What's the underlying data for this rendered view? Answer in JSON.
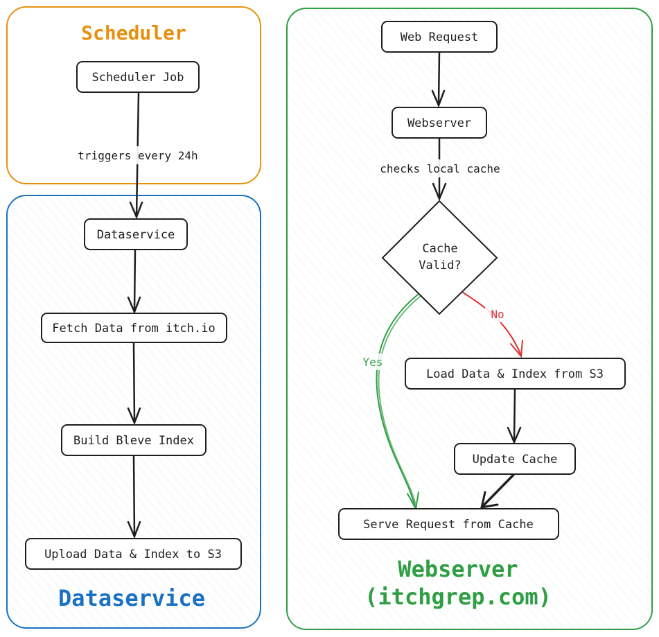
{
  "groups": {
    "scheduler": {
      "title": "Scheduler",
      "color": "#e8900c"
    },
    "dataservice": {
      "title": "Dataservice",
      "color": "#1971c2"
    },
    "webserver": {
      "title_line1": "Webserver",
      "title_line2": "(itchgrep.com)",
      "color": "#2f9e44"
    }
  },
  "nodes": {
    "scheduler_job": "Scheduler Job",
    "dataservice": "Dataservice",
    "fetch_data": "Fetch Data from itch.io",
    "build_index": "Build Bleve Index",
    "upload_data": "Upload Data & Index to S3",
    "web_request": "Web Request",
    "webserver": "Webserver",
    "cache_valid_line1": "Cache",
    "cache_valid_line2": "Valid?",
    "load_data": "Load Data & Index from S3",
    "update_cache": "Update Cache",
    "serve_request": "Serve Request from Cache"
  },
  "edges": {
    "triggers": "triggers every 24h",
    "checks_cache": "checks local cache",
    "no": "No",
    "yes": "Yes"
  },
  "colors": {
    "no_arrow": "#e03131",
    "yes_arrow": "#2f9e44",
    "stroke": "#1e1e1e"
  }
}
